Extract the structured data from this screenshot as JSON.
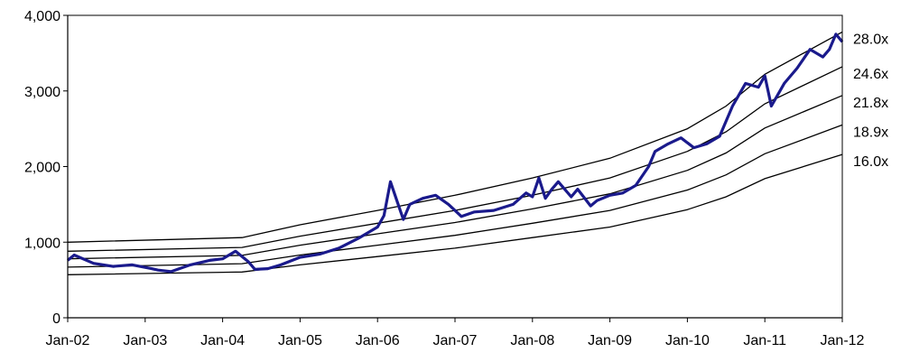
{
  "chart_data": {
    "type": "line",
    "title": "",
    "xlabel": "",
    "ylabel": "",
    "ylim": [
      0,
      4000
    ],
    "yticks": [
      0,
      1000,
      2000,
      3000,
      4000
    ],
    "ytick_labels": [
      "0",
      "1,000",
      "2,000",
      "3,000",
      "4,000"
    ],
    "xlim": [
      "2002-01",
      "2012-01"
    ],
    "xtick_labels": [
      "Jan-02",
      "Jan-03",
      "Jan-04",
      "Jan-05",
      "Jan-06",
      "Jan-07",
      "Jan-08",
      "Jan-09",
      "Jan-10",
      "Jan-11",
      "Jan-12"
    ],
    "grid": false,
    "legend": "none",
    "bands": [
      {
        "label": "28.0x",
        "x": [
          "2002-01",
          "2004-04",
          "2005-01",
          "2006-01",
          "2007-01",
          "2008-01",
          "2009-01",
          "2010-01",
          "2010-07",
          "2011-01",
          "2012-01"
        ],
        "values": [
          1000,
          1060,
          1230,
          1420,
          1620,
          1850,
          2110,
          2500,
          2800,
          3220,
          3780
        ]
      },
      {
        "label": "24.6x",
        "x": [
          "2002-01",
          "2004-04",
          "2005-01",
          "2006-01",
          "2007-01",
          "2008-01",
          "2009-01",
          "2010-01",
          "2010-07",
          "2011-01",
          "2012-01"
        ],
        "values": [
          880,
          930,
          1080,
          1250,
          1420,
          1620,
          1850,
          2200,
          2460,
          2830,
          3320
        ]
      },
      {
        "label": "21.8x",
        "x": [
          "2002-01",
          "2004-04",
          "2005-01",
          "2006-01",
          "2007-01",
          "2008-01",
          "2009-01",
          "2010-01",
          "2010-07",
          "2011-01",
          "2012-01"
        ],
        "values": [
          780,
          825,
          960,
          1110,
          1260,
          1440,
          1640,
          1950,
          2180,
          2510,
          2940
        ]
      },
      {
        "label": "18.9x",
        "x": [
          "2002-01",
          "2004-04",
          "2005-01",
          "2006-01",
          "2007-01",
          "2008-01",
          "2009-01",
          "2010-01",
          "2010-07",
          "2011-01",
          "2012-01"
        ],
        "values": [
          670,
          715,
          830,
          960,
          1090,
          1250,
          1420,
          1690,
          1890,
          2170,
          2550
        ]
      },
      {
        "label": "16.0x",
        "x": [
          "2002-01",
          "2004-04",
          "2005-01",
          "2006-01",
          "2007-01",
          "2008-01",
          "2009-01",
          "2010-01",
          "2010-07",
          "2011-01",
          "2012-01"
        ],
        "values": [
          570,
          605,
          700,
          810,
          920,
          1060,
          1200,
          1430,
          1600,
          1840,
          2160
        ]
      }
    ],
    "series": [
      {
        "color": "#1a1a8c",
        "x": [
          "2002-01",
          "2002-02",
          "2002-05",
          "2002-08",
          "2002-11",
          "2003-02",
          "2003-03",
          "2003-05",
          "2003-08",
          "2003-11",
          "2004-01",
          "2004-03",
          "2004-05",
          "2004-06",
          "2004-08",
          "2004-10",
          "2005-01",
          "2005-04",
          "2005-07",
          "2005-10",
          "2006-01",
          "2006-02",
          "2006-03",
          "2006-04",
          "2006-05",
          "2006-06",
          "2006-08",
          "2006-10",
          "2006-12",
          "2007-02",
          "2007-04",
          "2007-07",
          "2007-10",
          "2007-12",
          "2008-01",
          "2008-02",
          "2008-03",
          "2008-04",
          "2008-05",
          "2008-07",
          "2008-08",
          "2008-10",
          "2008-11",
          "2009-01",
          "2009-03",
          "2009-05",
          "2009-07",
          "2009-08",
          "2009-10",
          "2009-12",
          "2010-02",
          "2010-04",
          "2010-06",
          "2010-08",
          "2010-10",
          "2010-12",
          "2011-01",
          "2011-02",
          "2011-04",
          "2011-06",
          "2011-08",
          "2011-10",
          "2011-11",
          "2011-12",
          "2012-01"
        ],
        "values": [
          760,
          830,
          720,
          680,
          700,
          650,
          630,
          610,
          700,
          760,
          780,
          880,
          740,
          640,
          650,
          700,
          800,
          840,
          920,
          1050,
          1200,
          1350,
          1800,
          1550,
          1300,
          1500,
          1580,
          1620,
          1500,
          1340,
          1400,
          1420,
          1500,
          1650,
          1600,
          1850,
          1580,
          1700,
          1800,
          1600,
          1700,
          1480,
          1550,
          1620,
          1650,
          1750,
          2000,
          2200,
          2300,
          2380,
          2250,
          2300,
          2400,
          2800,
          3100,
          3050,
          3200,
          2800,
          3100,
          3300,
          3550,
          3450,
          3550,
          3750,
          3650
        ]
      }
    ]
  }
}
